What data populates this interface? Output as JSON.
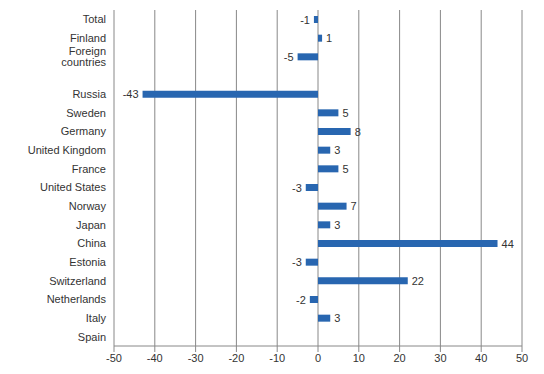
{
  "chart_data": {
    "type": "bar",
    "orientation": "horizontal",
    "categories": [
      "Total",
      "Finland",
      "Foreign countries",
      null,
      "Russia",
      "Sweden",
      "Germany",
      "United Kingdom",
      "France",
      "United States",
      "Norway",
      "Japan",
      "China",
      "Estonia",
      "Switzerland",
      "Netherlands",
      "Italy",
      "Spain"
    ],
    "values": [
      -1,
      1,
      -5,
      null,
      -43,
      5,
      8,
      3,
      5,
      -3,
      7,
      3,
      44,
      -3,
      22,
      -2,
      3,
      0
    ],
    "color": "#2866b0",
    "xlim": [
      -50,
      50
    ],
    "xticks": [
      -50,
      -40,
      -30,
      -20,
      -10,
      0,
      10,
      20,
      30,
      40,
      50
    ],
    "grid": true,
    "data_labels": true
  }
}
